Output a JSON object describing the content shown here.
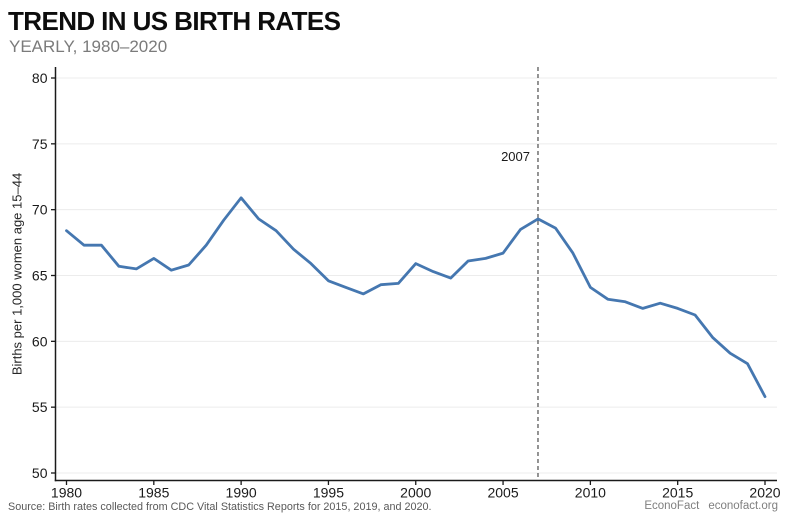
{
  "header": {
    "title": "TREND IN US BIRTH RATES",
    "subtitle": "YEARLY, 1980–2020"
  },
  "footer": {
    "source": "Source: Birth rates collected from CDC Vital Statistics Reports for 2015, 2019, and 2020.",
    "brand": "EconoFact",
    "site": "econofact.org"
  },
  "chart_data": {
    "type": "line",
    "title": "TREND IN US BIRTH RATES",
    "subtitle": "YEARLY, 1980–2020",
    "xlabel": "",
    "ylabel": "Births per 1,000 women age 15–44",
    "xlim": [
      1980,
      2020
    ],
    "ylim": [
      50,
      80
    ],
    "xticks": [
      "1980",
      "1985",
      "1990",
      "1995",
      "2000",
      "2005",
      "2010",
      "2015",
      "2020"
    ],
    "xtick_years": [
      1980,
      1985,
      1990,
      1995,
      2000,
      2005,
      2010,
      2015,
      2020
    ],
    "yticks": [
      "50",
      "55",
      "60",
      "65",
      "70",
      "75",
      "80"
    ],
    "ytick_values": [
      50,
      55,
      60,
      65,
      70,
      75,
      80
    ],
    "grid": true,
    "legend": "none",
    "x": [
      1980,
      1981,
      1982,
      1983,
      1984,
      1985,
      1986,
      1987,
      1988,
      1989,
      1990,
      1991,
      1992,
      1993,
      1994,
      1995,
      1996,
      1997,
      1998,
      1999,
      2000,
      2001,
      2002,
      2003,
      2004,
      2005,
      2006,
      2007,
      2008,
      2009,
      2010,
      2011,
      2012,
      2013,
      2014,
      2015,
      2016,
      2017,
      2018,
      2019,
      2020
    ],
    "series": [
      {
        "name": "Births per 1,000 women age 15-44",
        "color": "#4577b0",
        "values": [
          68.4,
          67.3,
          67.3,
          65.7,
          65.5,
          66.3,
          65.4,
          65.8,
          67.3,
          69.2,
          70.9,
          69.3,
          68.4,
          67.0,
          65.9,
          64.6,
          64.1,
          63.6,
          64.3,
          64.4,
          65.9,
          65.3,
          64.8,
          66.1,
          66.3,
          66.7,
          68.5,
          69.3,
          68.6,
          66.7,
          64.1,
          63.2,
          63.0,
          62.5,
          62.9,
          62.5,
          62.0,
          60.3,
          59.1,
          58.3,
          55.8
        ]
      }
    ],
    "annotation": {
      "label": "2007",
      "x": 2007
    },
    "colors": {
      "line": "#4577b0",
      "grid": "#ececec",
      "axis": "#1a1a1a",
      "dashed_line": "#4d4d4d",
      "tick_text": "#1a1a1a"
    }
  }
}
